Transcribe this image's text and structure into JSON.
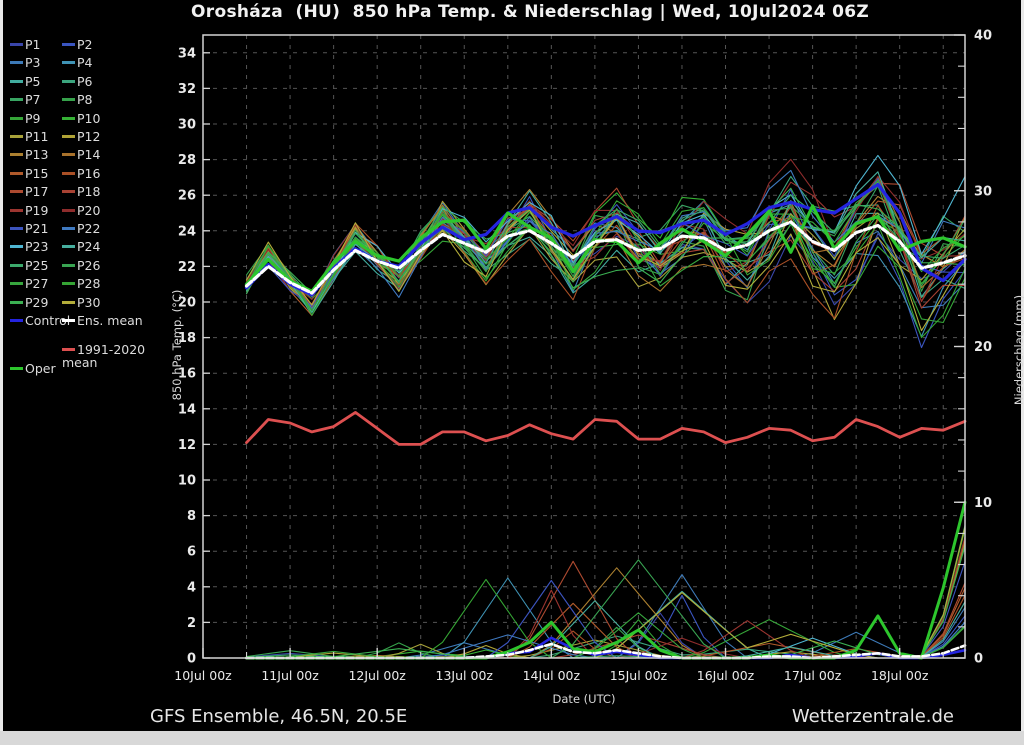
{
  "chart_data": {
    "type": "line",
    "title": "Orosháza  (HU)  850 hPa Temp. & Niederschlag | Wed, 10Jul2024 06Z",
    "xlabel": "Date (UTC)",
    "ylabel_left": "850 hPa Temp. (°C)",
    "ylabel_right": "Niederschlag (mm)",
    "x_axis": {
      "hours_max": 210,
      "minor_step_h": 12,
      "day_step_h": 24,
      "tick_labels": [
        "10Jul 00z",
        "11Jul 00z",
        "12Jul 00z",
        "13Jul 00z",
        "14Jul 00z",
        "15Jul 00z",
        "16Jul 00z",
        "17Jul 00z",
        "18Jul 00z"
      ]
    },
    "temp_axis": {
      "min": 0,
      "max": 35,
      "label_step": 2,
      "label_max": 34
    },
    "precip_axis": {
      "min": 0,
      "max": 40,
      "major_step": 10,
      "minor_step": 2
    },
    "x_hours": [
      12,
      18,
      24,
      30,
      36,
      42,
      48,
      54,
      60,
      66,
      72,
      78,
      84,
      90,
      96,
      102,
      108,
      114,
      120,
      126,
      132,
      138,
      144,
      150,
      156,
      162,
      168,
      174,
      180,
      186,
      192,
      198,
      204,
      210
    ],
    "series": {
      "ens_mean_temp": [
        20.9,
        22.0,
        21.1,
        20.5,
        21.8,
        22.9,
        22.3,
        21.9,
        22.9,
        23.8,
        23.3,
        22.8,
        23.7,
        24.0,
        23.3,
        22.5,
        23.4,
        23.5,
        22.9,
        23.0,
        23.7,
        23.6,
        22.9,
        23.2,
        24.0,
        24.5,
        23.4,
        22.9,
        23.9,
        24.3,
        23.4,
        21.9,
        22.2,
        22.6
      ],
      "control_temp": [
        20.8,
        22.1,
        21.0,
        20.4,
        21.9,
        23.0,
        22.3,
        22.0,
        23.3,
        24.2,
        23.5,
        23.8,
        25.0,
        25.3,
        24.2,
        23.7,
        24.3,
        24.8,
        24.0,
        23.9,
        24.4,
        24.6,
        23.8,
        24.4,
        25.3,
        25.6,
        25.2,
        25.0,
        25.8,
        26.6,
        25.0,
        21.9,
        21.2,
        22.4
      ],
      "oper_temp": [
        21.0,
        22.4,
        21.2,
        20.6,
        22.2,
        23.4,
        22.6,
        22.3,
        23.6,
        24.5,
        24.6,
        23.0,
        25.0,
        24.2,
        23.6,
        21.7,
        23.5,
        23.4,
        22.2,
        23.3,
        24.1,
        23.4,
        22.6,
        23.8,
        25.1,
        22.8,
        25.4,
        23.0,
        24.4,
        24.8,
        22.9,
        23.4,
        23.6,
        23.1
      ],
      "climate_temp": [
        12.1,
        13.4,
        13.2,
        12.7,
        13.0,
        13.8,
        12.9,
        12.0,
        12.0,
        12.7,
        12.7,
        12.2,
        12.5,
        13.1,
        12.6,
        12.3,
        13.4,
        13.3,
        12.3,
        12.3,
        12.9,
        12.7,
        12.1,
        12.4,
        12.9,
        12.8,
        12.2,
        12.4,
        13.4,
        13.0,
        12.4,
        12.9,
        12.8,
        13.3
      ],
      "ens_mean_precip": [
        0,
        0,
        0,
        0,
        0,
        0,
        0,
        0,
        0,
        0,
        0,
        0.1,
        0.2,
        0.5,
        0.9,
        0.4,
        0.3,
        0.5,
        0.3,
        0.1,
        0,
        0,
        0,
        0,
        0.1,
        0.1,
        0,
        0.1,
        0.2,
        0.3,
        0.1,
        0.1,
        0.3,
        0.8
      ],
      "control_precip": [
        0,
        0,
        0,
        0,
        0,
        0,
        0,
        0,
        0,
        0,
        0,
        0,
        0.3,
        0.4,
        1.3,
        0.6,
        0.2,
        0.4,
        0.2,
        0,
        0,
        0,
        0,
        0,
        0,
        0.2,
        0,
        0,
        0.1,
        0.3,
        0,
        0,
        0.2,
        0.5
      ],
      "oper_precip": [
        0,
        0,
        0,
        0,
        0,
        0,
        0,
        0,
        0,
        0,
        0,
        0,
        0.4,
        1.0,
        2.3,
        0.6,
        0.4,
        1.0,
        1.8,
        0.5,
        0,
        0,
        0,
        0,
        0.2,
        0,
        0,
        0,
        0.5,
        2.7,
        0.3,
        0,
        4.5,
        10.0
      ]
    },
    "members": {
      "names": [
        "P1",
        "P2",
        "P3",
        "P4",
        "P5",
        "P6",
        "P7",
        "P8",
        "P9",
        "P10",
        "P11",
        "P12",
        "P13",
        "P14",
        "P15",
        "P16",
        "P17",
        "P18",
        "P19",
        "P20",
        "P21",
        "P22",
        "P23",
        "P24",
        "P25",
        "P26",
        "P27",
        "P28",
        "P29",
        "P30"
      ],
      "colors": [
        "#3a46aa",
        "#3a55c0",
        "#3d7ab8",
        "#3f93b5",
        "#41ad9f",
        "#3ba57e",
        "#38a562",
        "#36a24b",
        "#35a538",
        "#35b135",
        "#a8a23a",
        "#b0a336",
        "#ac8030",
        "#a9722c",
        "#b05a2b",
        "#aa5026",
        "#ad4a30",
        "#a84233",
        "#9c3530",
        "#8e2c2c",
        "#3c54be",
        "#3f79c0",
        "#4fb6d2",
        "#46ae9e",
        "#3ca96c",
        "#39a452",
        "#37a63e",
        "#35a434",
        "#3bb052",
        "#b3ad3a"
      ],
      "seed": 42,
      "temp_spread_sd": [
        0.4,
        0.45,
        0.5,
        0.55,
        0.6,
        0.65,
        0.7,
        0.75,
        0.8,
        0.9,
        1.0,
        1.05,
        1.1,
        1.2,
        1.3,
        1.35,
        1.4,
        1.5,
        1.55,
        1.6,
        1.7,
        1.75,
        1.8,
        1.9,
        2.0,
        2.1,
        2.15,
        2.2,
        2.3,
        2.4,
        2.5,
        2.6,
        2.7,
        2.8
      ],
      "temp_clamp": [
        14.0,
        30.5
      ],
      "precip_windows": [
        {
          "start": 24,
          "end": 48,
          "prob": 0.2,
          "max": 0.6
        },
        {
          "start": 54,
          "end": 72,
          "prob": 0.25,
          "max": 1.2
        },
        {
          "start": 78,
          "end": 132,
          "prob": 0.85,
          "max": 6.5
        },
        {
          "start": 150,
          "end": 196,
          "prob": 0.4,
          "max": 3.0
        },
        {
          "start": 196,
          "end": 210,
          "prob": 0.55,
          "max": 9.0,
          "mode": "rise"
        }
      ]
    },
    "colors": {
      "control": "#2424e0",
      "mean": "#ffffff",
      "oper": "#2dc62d",
      "climate": "#dd5050",
      "grid": "#555555",
      "frame": "#d4d4d4",
      "tick_label": "#eaeaea"
    },
    "legend_position": "left",
    "grid": true
  },
  "legend": {
    "pairs": [
      [
        "P1",
        "P2"
      ],
      [
        "P3",
        "P4"
      ],
      [
        "P5",
        "P6"
      ],
      [
        "P7",
        "P8"
      ],
      [
        "P9",
        "P10"
      ],
      [
        "P11",
        "P12"
      ],
      [
        "P13",
        "P14"
      ],
      [
        "P15",
        "P16"
      ],
      [
        "P17",
        "P18"
      ],
      [
        "P19",
        "P20"
      ],
      [
        "P21",
        "P22"
      ],
      [
        "P23",
        "P24"
      ],
      [
        "P25",
        "P26"
      ],
      [
        "P27",
        "P28"
      ],
      [
        "P29",
        "P30"
      ],
      [
        "Control",
        "Ens. mean"
      ]
    ],
    "extra": [
      {
        "label": "1991-2020 mean",
        "two_line": true,
        "col": 1,
        "row": 16.6,
        "color_key": "climate"
      },
      {
        "label": "Oper",
        "col": 0,
        "row": 17.6,
        "color_key": "oper"
      }
    ]
  },
  "footer": {
    "left": "GFS Ensemble, 46.5N, 20.5E",
    "right": "Wetterzentrale.de"
  }
}
